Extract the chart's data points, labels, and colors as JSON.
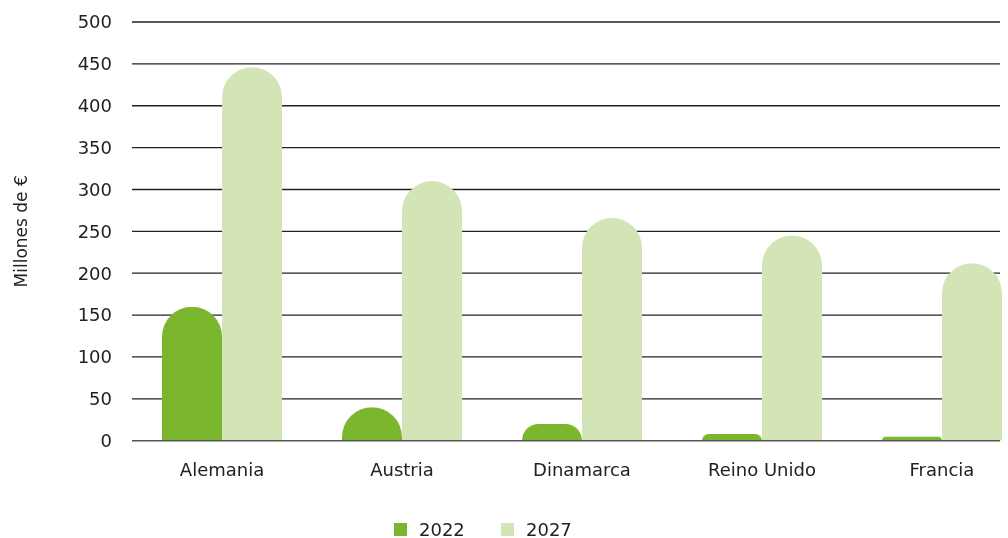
{
  "chart_data": {
    "type": "bar",
    "ylabel": "Millones de €",
    "categories": [
      "Alemania",
      "Austria",
      "Dinamarca",
      "Reino Unido",
      "Francia"
    ],
    "series": [
      {
        "name": "2022",
        "color": "#7ab72f",
        "values": [
          160,
          40,
          20,
          8,
          5
        ]
      },
      {
        "name": "2027",
        "color": "#d3e4b7",
        "values": [
          446,
          310,
          266,
          245,
          212
        ]
      }
    ],
    "ylim": [
      0,
      500
    ],
    "yticks": [
      0,
      50,
      100,
      150,
      200,
      250,
      300,
      350,
      400,
      450,
      500
    ],
    "grid": "y",
    "legend": "bottom"
  }
}
